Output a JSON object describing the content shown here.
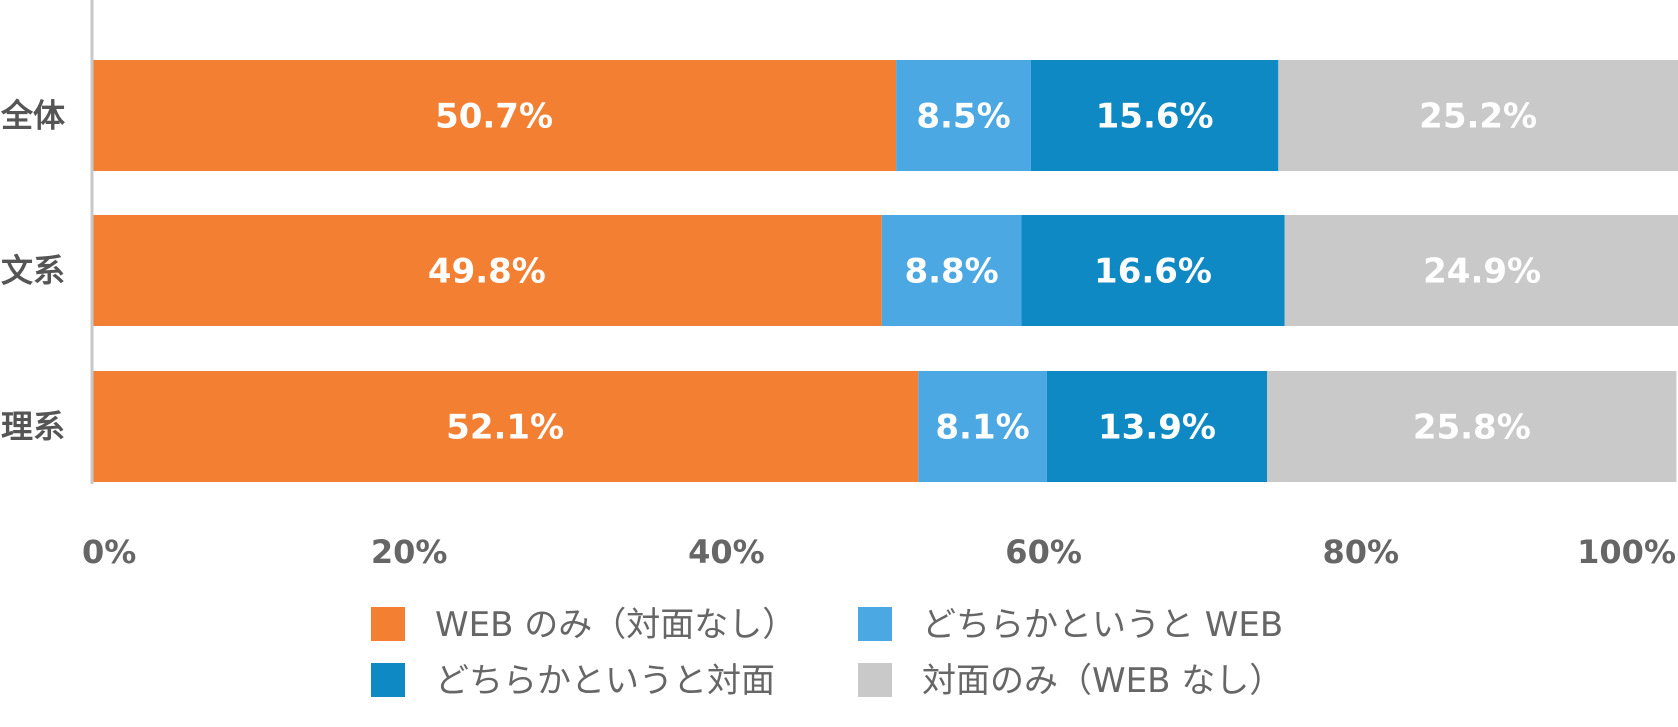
{
  "chart_data": {
    "type": "bar",
    "orientation": "horizontal",
    "stacked": true,
    "categories": [
      "全体",
      "文系",
      "理系"
    ],
    "series": [
      {
        "name": "WEB のみ（対面なし）",
        "values": [
          50.7,
          49.8,
          52.1
        ],
        "color": "#F37F33"
      },
      {
        "name": "どちらかというと WEB",
        "values": [
          8.5,
          8.8,
          8.1
        ],
        "color": "#4BA8E3"
      },
      {
        "name": "どちらかというと対面",
        "values": [
          15.6,
          16.6,
          13.9
        ],
        "color": "#0E89C4"
      },
      {
        "name": "対面のみ（WEB なし）",
        "values": [
          25.2,
          24.9,
          25.8
        ],
        "color": "#C9C9C9"
      }
    ],
    "value_labels": [
      [
        "50.7%",
        "8.5%",
        "15.6%",
        "25.2%"
      ],
      [
        "49.8%",
        "8.8%",
        "16.6%",
        "24.9%"
      ],
      [
        "52.1%",
        "8.1%",
        "13.9%",
        "25.8%"
      ]
    ],
    "xlim": [
      0,
      100
    ],
    "xticks": [
      0,
      20,
      40,
      60,
      80,
      100
    ],
    "xtick_labels": [
      "0%",
      "20%",
      "40%",
      "60%",
      "80%",
      "100%"
    ],
    "grid": false,
    "legend_position": "bottom"
  }
}
